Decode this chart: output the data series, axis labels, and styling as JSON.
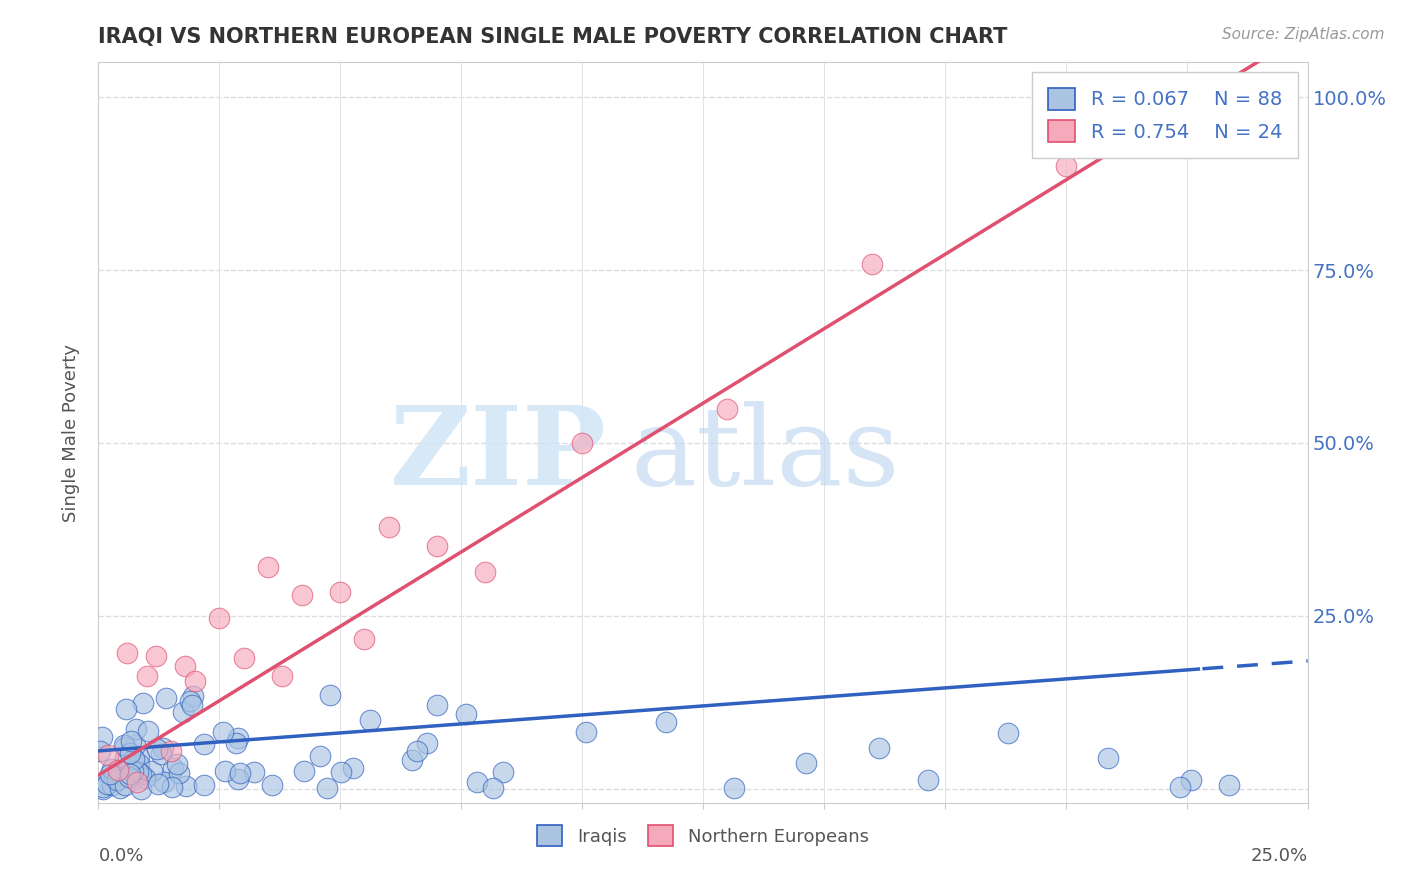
{
  "title": "IRAQI VS NORTHERN EUROPEAN SINGLE MALE POVERTY CORRELATION CHART",
  "source": "Source: ZipAtlas.com",
  "ylabel": "Single Male Poverty",
  "yticks": [
    0.0,
    0.25,
    0.5,
    0.75,
    1.0
  ],
  "ytick_labels": [
    "",
    "25.0%",
    "50.0%",
    "75.0%",
    "100.0%"
  ],
  "xlim": [
    0.0,
    0.25
  ],
  "ylim": [
    -0.02,
    1.05
  ],
  "iraqi_R": 0.067,
  "iraqi_N": 88,
  "ne_R": 0.754,
  "ne_N": 24,
  "iraqi_color": "#aac4e2",
  "ne_color": "#f5aabc",
  "trend_iraqi_color": "#3060c0",
  "trend_ne_color": "#e05070",
  "ytick_color": "#4472c4",
  "label_color": "#555555",
  "grid_color": "#dddddd",
  "spine_color": "#cccccc",
  "title_color": "#333333",
  "source_color": "#999999",
  "watermark_zip_color": "#d0e4f5",
  "watermark_atlas_color": "#c0d8f0"
}
